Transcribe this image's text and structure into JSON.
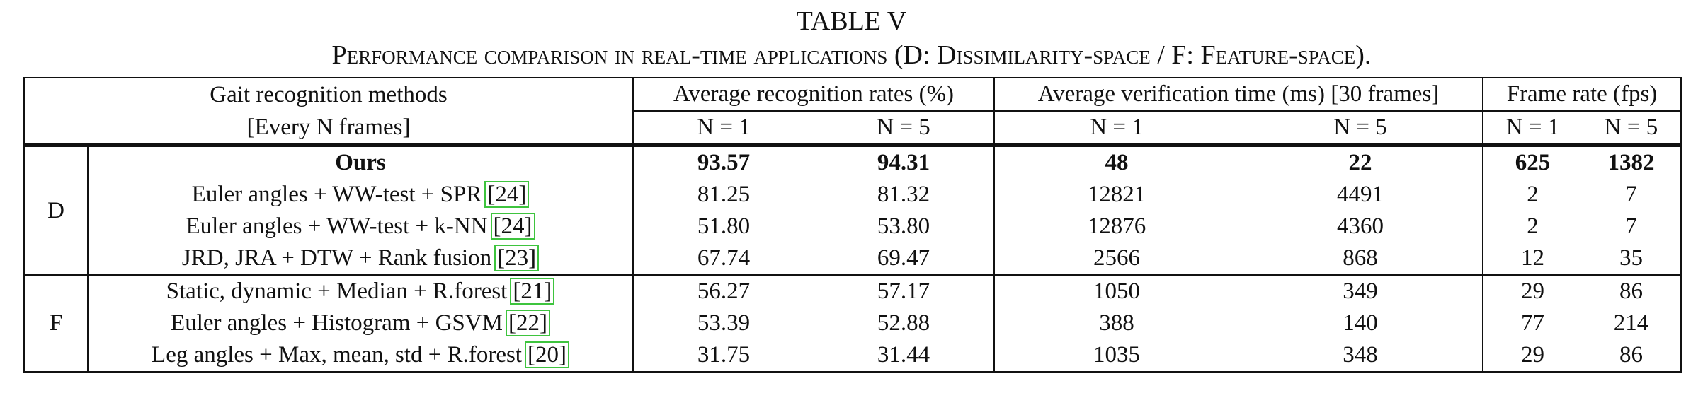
{
  "table_title": "TABLE V",
  "caption": "Performance comparison in real-time applications (D: Dissimilarity-space / F: Feature-space).",
  "headers": {
    "method_line1": "Gait recognition methods",
    "method_line2": "[Every N frames]",
    "group_recognition": "Average recognition rates (%)",
    "group_verification": "Average verification time (ms) [30 frames]",
    "group_framerate": "Frame rate (fps)",
    "n1": "N = 1",
    "n5": "N = 5"
  },
  "groups": [
    {
      "label": "D",
      "rows": [
        {
          "method": "Ours",
          "ref": "",
          "rec_n1": "93.57",
          "rec_n5": "94.31",
          "ver_n1": "48",
          "ver_n5": "22",
          "fps_n1": "625",
          "fps_n5": "1382",
          "bold": true
        },
        {
          "method": "Euler angles + WW-test + SPR",
          "ref": "[24]",
          "rec_n1": "81.25",
          "rec_n5": "81.32",
          "ver_n1": "12821",
          "ver_n5": "4491",
          "fps_n1": "2",
          "fps_n5": "7"
        },
        {
          "method": "Euler angles + WW-test + k-NN",
          "ref": "[24]",
          "rec_n1": "51.80",
          "rec_n5": "53.80",
          "ver_n1": "12876",
          "ver_n5": "4360",
          "fps_n1": "2",
          "fps_n5": "7"
        },
        {
          "method": "JRD, JRA + DTW + Rank fusion",
          "ref": "[23]",
          "rec_n1": "67.74",
          "rec_n5": "69.47",
          "ver_n1": "2566",
          "ver_n5": "868",
          "fps_n1": "12",
          "fps_n5": "35"
        }
      ]
    },
    {
      "label": "F",
      "rows": [
        {
          "method": "Static, dynamic + Median + R.forest",
          "ref": "[21]",
          "rec_n1": "56.27",
          "rec_n5": "57.17",
          "ver_n1": "1050",
          "ver_n5": "349",
          "fps_n1": "29",
          "fps_n5": "86"
        },
        {
          "method": "Euler angles + Histogram + GSVM",
          "ref": "[22]",
          "rec_n1": "53.39",
          "rec_n5": "52.88",
          "ver_n1": "388",
          "ver_n5": "140",
          "fps_n1": "77",
          "fps_n5": "214"
        },
        {
          "method": "Leg angles + Max, mean, std + R.forest",
          "ref": "[20]",
          "rec_n1": "31.75",
          "rec_n5": "31.44",
          "ver_n1": "1035",
          "ver_n5": "348",
          "fps_n1": "29",
          "fps_n5": "86"
        }
      ]
    }
  ]
}
